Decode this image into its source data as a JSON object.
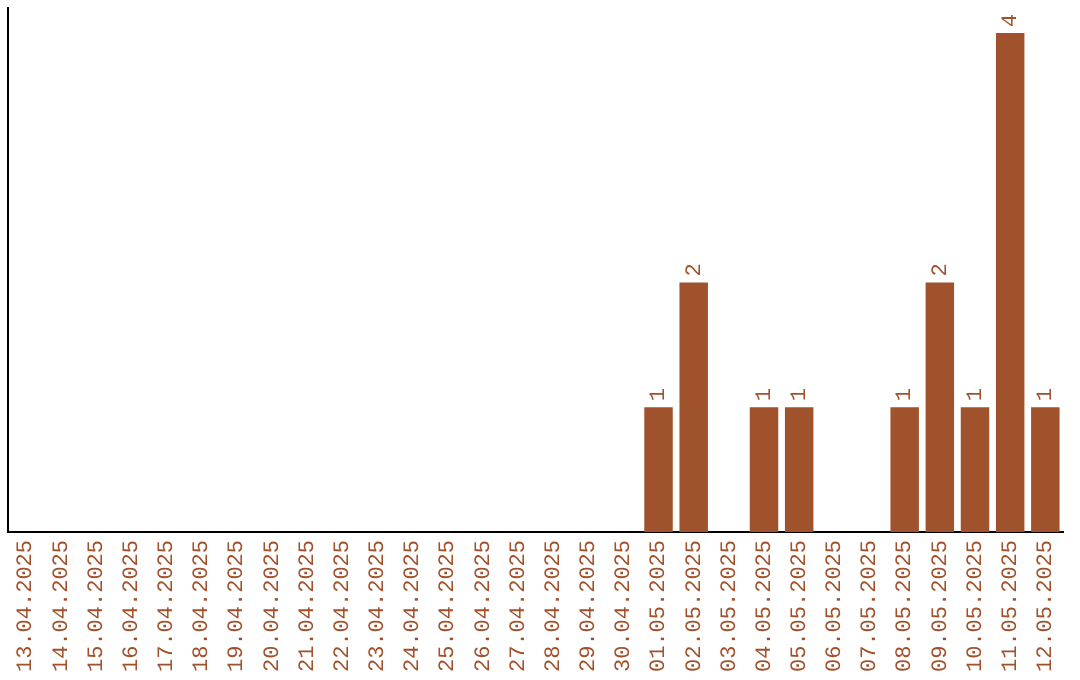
{
  "chart_data": {
    "type": "bar",
    "categories": [
      "13.04.2025",
      "14.04.2025",
      "15.04.2025",
      "16.04.2025",
      "17.04.2025",
      "18.04.2025",
      "19.04.2025",
      "20.04.2025",
      "21.04.2025",
      "22.04.2025",
      "23.04.2025",
      "24.04.2025",
      "25.04.2025",
      "26.04.2025",
      "27.04.2025",
      "28.04.2025",
      "29.04.2025",
      "30.04.2025",
      "01.05.2025",
      "02.05.2025",
      "03.05.2025",
      "04.05.2025",
      "05.05.2025",
      "06.05.2025",
      "07.05.2025",
      "08.05.2025",
      "09.05.2025",
      "10.05.2025",
      "11.05.2025",
      "12.05.2025"
    ],
    "values": [
      null,
      null,
      null,
      null,
      null,
      null,
      null,
      null,
      null,
      null,
      null,
      null,
      null,
      null,
      null,
      null,
      null,
      null,
      1,
      2,
      null,
      1,
      1,
      null,
      null,
      1,
      2,
      1,
      4,
      1
    ],
    "color": "#a0522d",
    "ylim": [
      0,
      4.2
    ],
    "data_labels": true,
    "tick_labels": "x",
    "grid": false,
    "legend": false
  }
}
